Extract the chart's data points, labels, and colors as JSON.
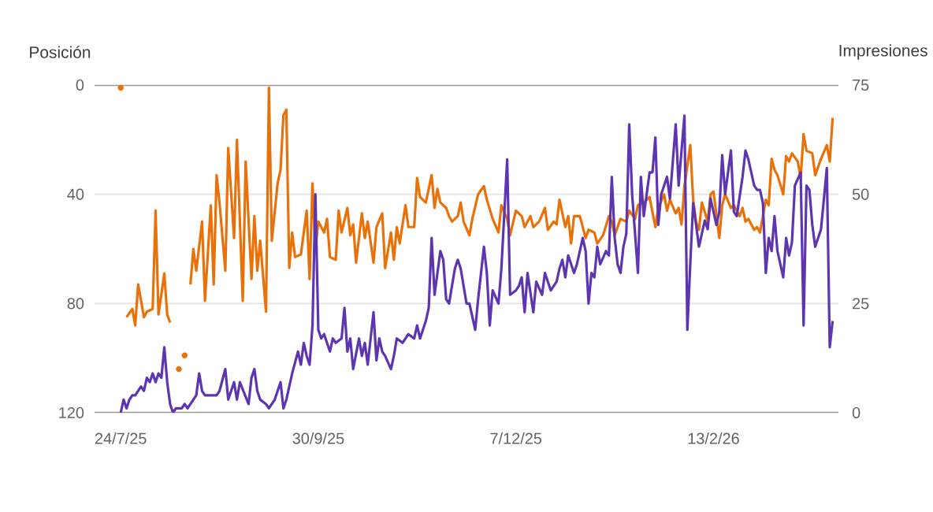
{
  "chart_data": {
    "type": "line",
    "ylabel": "Posición",
    "y2label": "Impresiones",
    "xlim": [
      "2025-07-15",
      "2026-03-28"
    ],
    "xticks": [
      {
        "value": "2025-07-24",
        "label": "24/7/25"
      },
      {
        "value": "2025-09-30",
        "label": "30/9/25"
      },
      {
        "value": "2025-12-07",
        "label": "7/12/25"
      },
      {
        "value": "2026-02-13",
        "label": "13/2/26"
      }
    ],
    "ylim": [
      120,
      0
    ],
    "yticks": [
      0,
      40,
      80,
      120
    ],
    "y2lim": [
      0,
      75
    ],
    "y2ticks": [
      0,
      25,
      50,
      75
    ],
    "grid": "y",
    "series": [
      {
        "color": "#e8710a",
        "axis": "y",
        "x": [
          "2025-07-24",
          "2025-07-25",
          "2025-07-26",
          "2025-07-28",
          "2025-07-29",
          "2025-07-30",
          "2025-08-01",
          "2025-08-02",
          "2025-08-04",
          "2025-08-05",
          "2025-08-06",
          "2025-08-08",
          "2025-08-09",
          "2025-08-10",
          "2025-08-11",
          "2025-08-13",
          "2025-08-14",
          "2025-08-15",
          "2025-08-16",
          "2025-08-17",
          "2025-08-18",
          "2025-08-19",
          "2025-08-21",
          "2025-08-22",
          "2025-08-24",
          "2025-08-25",
          "2025-08-26",
          "2025-08-27",
          "2025-08-29",
          "2025-08-30",
          "2025-09-01",
          "2025-09-02",
          "2025-09-04",
          "2025-09-05",
          "2025-09-07",
          "2025-09-08",
          "2025-09-09",
          "2025-09-10",
          "2025-09-12",
          "2025-09-13",
          "2025-09-14",
          "2025-09-16",
          "2025-09-17",
          "2025-09-18",
          "2025-09-19",
          "2025-09-20",
          "2025-09-21",
          "2025-09-22",
          "2025-09-24",
          "2025-09-26",
          "2025-09-27",
          "2025-09-28",
          "2025-09-29",
          "2025-09-30",
          "2025-10-02",
          "2025-10-03",
          "2025-10-04",
          "2025-10-06",
          "2025-10-07",
          "2025-10-08",
          "2025-10-10",
          "2025-10-11",
          "2025-10-12",
          "2025-10-13",
          "2025-10-15",
          "2025-10-16",
          "2025-10-17",
          "2025-10-19",
          "2025-10-20",
          "2025-10-22",
          "2025-10-23",
          "2025-10-25",
          "2025-10-26",
          "2025-10-27",
          "2025-10-28",
          "2025-10-30",
          "2025-10-31",
          "2025-11-02",
          "2025-11-03",
          "2025-11-04",
          "2025-11-06",
          "2025-11-07",
          "2025-11-08",
          "2025-11-09",
          "2025-11-10",
          "2025-11-11",
          "2025-11-13",
          "2025-11-14",
          "2025-11-15",
          "2025-11-17",
          "2025-11-18",
          "2025-11-19",
          "2025-11-21",
          "2025-11-22",
          "2025-11-24",
          "2025-11-26",
          "2025-11-27",
          "2025-11-29",
          "2025-12-01",
          "2025-12-02",
          "2025-12-04",
          "2025-12-05",
          "2025-12-07",
          "2025-12-09",
          "2025-12-10",
          "2025-12-12",
          "2025-12-13",
          "2025-12-15",
          "2025-12-17",
          "2025-12-18",
          "2025-12-20",
          "2025-12-21",
          "2025-12-22",
          "2025-12-24",
          "2025-12-25",
          "2025-12-26",
          "2025-12-27",
          "2025-12-29",
          "2025-12-31",
          "2026-01-01",
          "2026-01-03",
          "2026-01-04",
          "2026-01-06",
          "2026-01-08",
          "2026-01-09",
          "2026-01-10",
          "2026-01-12",
          "2026-01-14",
          "2026-01-15",
          "2026-01-17",
          "2026-01-18",
          "2026-01-20",
          "2026-01-22",
          "2026-01-24",
          "2026-01-25",
          "2026-01-27",
          "2026-01-28",
          "2026-01-29",
          "2026-01-31",
          "2026-02-01",
          "2026-02-02",
          "2026-02-03",
          "2026-02-05",
          "2026-02-06",
          "2026-02-07",
          "2026-02-08",
          "2026-02-09",
          "2026-02-11",
          "2026-02-12",
          "2026-02-13",
          "2026-02-15",
          "2026-02-16",
          "2026-02-17",
          "2026-02-19",
          "2026-02-20",
          "2026-02-22",
          "2026-02-23",
          "2026-02-24",
          "2026-02-25",
          "2026-02-27",
          "2026-02-28",
          "2026-03-01",
          "2026-03-03",
          "2026-03-04",
          "2026-03-05",
          "2026-03-06",
          "2026-03-07",
          "2026-03-09",
          "2026-03-10",
          "2026-03-11",
          "2026-03-12",
          "2026-03-14",
          "2026-03-15",
          "2026-03-16",
          "2026-03-17",
          "2026-03-19",
          "2026-03-20",
          "2026-03-21",
          "2026-03-22",
          "2026-03-24",
          "2026-03-25",
          "2026-03-26"
        ],
        "values": [
          1,
          null,
          85,
          82,
          88,
          73,
          85,
          83,
          82,
          46,
          84,
          69,
          84,
          87,
          null,
          104,
          null,
          99,
          null,
          73,
          60,
          68,
          50,
          79,
          44,
          73,
          33,
          43,
          68,
          23,
          56,
          20,
          79,
          28,
          71,
          48,
          68,
          57,
          83,
          1,
          57,
          36,
          31,
          11,
          9,
          67,
          54,
          63,
          62,
          46,
          71,
          36,
          60,
          50,
          54,
          49,
          63,
          64,
          46,
          54,
          45,
          55,
          51,
          65,
          47,
          56,
          50,
          65,
          52,
          47,
          67,
          54,
          64,
          52,
          58,
          44,
          52,
          52,
          34,
          41,
          43,
          38,
          33,
          45,
          38,
          43,
          45,
          48,
          50,
          48,
          43,
          50,
          55,
          49,
          40,
          37,
          42,
          49,
          54,
          44,
          49,
          55,
          46,
          48,
          52,
          48,
          52,
          50,
          45,
          53,
          50,
          51,
          42,
          52,
          48,
          58,
          48,
          48,
          56,
          53,
          54,
          58,
          55,
          48,
          50,
          55,
          49,
          50,
          46,
          49,
          44,
          43,
          41,
          52,
          45,
          40,
          46,
          42,
          47,
          45,
          51,
          37,
          22,
          42,
          50,
          53,
          43,
          50,
          40,
          39,
          56,
          44,
          40,
          45,
          44,
          48,
          45,
          50,
          49,
          53,
          52,
          54,
          42,
          44,
          27,
          31,
          33,
          40,
          26,
          28,
          25,
          28,
          34,
          18,
          24,
          25,
          33,
          30,
          27,
          22,
          28,
          12
        ]
      },
      {
        "color": "#5e35b1",
        "axis": "y2",
        "x": [
          "2025-07-24",
          "2025-07-25",
          "2025-07-26",
          "2025-07-27",
          "2025-07-28",
          "2025-07-29",
          "2025-07-31",
          "2025-08-01",
          "2025-08-02",
          "2025-08-03",
          "2025-08-04",
          "2025-08-05",
          "2025-08-06",
          "2025-08-07",
          "2025-08-08",
          "2025-08-09",
          "2025-08-10",
          "2025-08-11",
          "2025-08-12",
          "2025-08-13",
          "2025-08-14",
          "2025-08-15",
          "2025-08-16",
          "2025-08-17",
          "2025-08-18",
          "2025-08-19",
          "2025-08-20",
          "2025-08-21",
          "2025-08-22",
          "2025-08-24",
          "2025-08-25",
          "2025-08-26",
          "2025-08-27",
          "2025-08-29",
          "2025-08-30",
          "2025-09-01",
          "2025-09-02",
          "2025-09-03",
          "2025-09-06",
          "2025-09-07",
          "2025-09-08",
          "2025-09-09",
          "2025-09-10",
          "2025-09-12",
          "2025-09-13",
          "2025-09-15",
          "2025-09-17",
          "2025-09-18",
          "2025-09-19",
          "2025-09-21",
          "2025-09-23",
          "2025-09-24",
          "2025-09-25",
          "2025-09-26",
          "2025-09-27",
          "2025-09-28",
          "2025-09-29",
          "2025-09-30",
          "2025-10-01",
          "2025-10-02",
          "2025-10-04",
          "2025-10-05",
          "2025-10-06",
          "2025-10-08",
          "2025-10-09",
          "2025-10-10",
          "2025-10-11",
          "2025-10-12",
          "2025-10-14",
          "2025-10-15",
          "2025-10-16",
          "2025-10-17",
          "2025-10-19",
          "2025-10-20",
          "2025-10-21",
          "2025-10-22",
          "2025-10-23",
          "2025-10-25",
          "2025-10-26",
          "2025-10-27",
          "2025-10-29",
          "2025-10-30",
          "2025-10-31",
          "2025-11-02",
          "2025-11-03",
          "2025-11-04",
          "2025-11-06",
          "2025-11-07",
          "2025-11-08",
          "2025-11-09",
          "2025-11-11",
          "2025-11-12",
          "2025-11-13",
          "2025-11-14",
          "2025-11-16",
          "2025-11-17",
          "2025-11-18",
          "2025-11-20",
          "2025-11-21",
          "2025-11-23",
          "2025-11-24",
          "2025-11-26",
          "2025-11-27",
          "2025-11-28",
          "2025-11-29",
          "2025-12-01",
          "2025-12-02",
          "2025-12-04",
          "2025-12-05",
          "2025-12-07",
          "2025-12-08",
          "2025-12-09",
          "2025-12-10",
          "2025-12-11",
          "2025-12-13",
          "2025-12-14",
          "2025-12-16",
          "2025-12-17",
          "2025-12-19",
          "2025-12-21",
          "2025-12-22",
          "2025-12-23",
          "2025-12-24",
          "2025-12-25",
          "2025-12-27",
          "2025-12-28",
          "2025-12-30",
          "2025-12-31",
          "2026-01-01",
          "2026-01-02",
          "2026-01-03",
          "2026-01-04",
          "2026-01-05",
          "2026-01-07",
          "2026-01-08",
          "2026-01-09",
          "2026-01-10",
          "2026-01-11",
          "2026-01-12",
          "2026-01-13",
          "2026-01-14",
          "2026-01-15",
          "2026-01-16",
          "2026-01-18",
          "2026-01-19",
          "2026-01-20",
          "2026-01-22",
          "2026-01-23",
          "2026-01-24",
          "2026-01-25",
          "2026-01-26",
          "2026-01-28",
          "2026-01-29",
          "2026-01-31",
          "2026-02-01",
          "2026-02-03",
          "2026-02-04",
          "2026-02-05",
          "2026-02-06",
          "2026-02-07",
          "2026-02-08",
          "2026-02-10",
          "2026-02-11",
          "2026-02-12",
          "2026-02-14",
          "2026-02-15",
          "2026-02-16",
          "2026-02-17",
          "2026-02-19",
          "2026-02-20",
          "2026-02-21",
          "2026-02-23",
          "2026-02-24",
          "2026-02-25",
          "2026-02-27",
          "2026-02-28",
          "2026-03-01",
          "2026-03-02",
          "2026-03-03",
          "2026-03-04",
          "2026-03-05",
          "2026-03-06",
          "2026-03-07",
          "2026-03-09",
          "2026-03-10",
          "2026-03-11",
          "2026-03-12",
          "2026-03-13",
          "2026-03-15",
          "2026-03-16",
          "2026-03-17",
          "2026-03-18",
          "2026-03-19",
          "2026-03-20",
          "2026-03-22",
          "2026-03-24",
          "2026-03-25",
          "2026-03-26"
        ],
        "values": [
          0,
          3,
          1,
          3,
          4,
          4,
          6,
          5,
          8,
          7,
          9,
          7,
          9,
          8,
          15,
          7,
          2,
          0,
          1,
          1,
          1,
          2,
          1,
          2,
          3,
          4,
          9,
          5,
          4,
          4,
          4,
          4,
          5,
          10,
          3,
          7,
          3,
          7,
          2,
          8,
          10,
          5,
          3,
          2,
          1,
          3,
          7,
          1,
          3,
          9,
          14,
          11,
          16,
          13,
          11,
          20,
          50,
          19,
          17,
          18,
          14,
          17,
          16,
          17,
          24,
          14,
          17,
          10,
          17,
          13,
          16,
          11,
          23,
          12,
          17,
          14,
          13,
          10,
          13,
          17,
          16,
          17,
          18,
          17,
          20,
          17,
          21,
          24,
          40,
          27,
          37,
          35,
          26,
          25,
          33,
          35,
          33,
          25,
          25,
          19,
          26,
          38,
          32,
          20,
          28,
          25,
          33,
          58,
          27,
          28,
          29,
          31,
          23,
          32,
          23,
          30,
          27,
          32,
          28,
          30,
          33,
          35,
          31,
          36,
          32,
          34,
          40,
          37,
          25,
          32,
          31,
          38,
          34,
          37,
          36,
          54,
          40,
          34,
          32,
          38,
          41,
          66,
          50,
          32,
          54,
          45,
          55,
          55,
          63,
          43,
          50,
          54,
          49,
          66,
          52,
          68,
          19,
          34,
          48,
          43,
          38,
          44,
          42,
          49,
          43,
          46,
          59,
          50,
          60,
          46,
          45,
          54,
          60,
          58,
          52,
          51,
          51,
          48,
          32,
          40,
          37,
          45,
          37,
          31,
          40,
          36,
          39,
          52,
          55,
          20,
          52,
          51,
          43,
          38,
          42,
          56,
          15,
          21
        ]
      }
    ]
  }
}
